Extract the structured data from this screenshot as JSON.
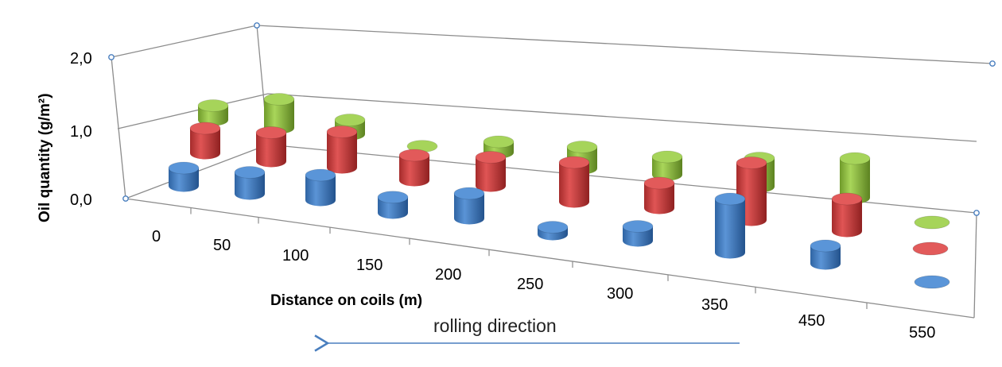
{
  "chart_data": {
    "type": "bar",
    "subtype": "3d-cylinder",
    "title": "",
    "xlabel": "Distance on coils (m)",
    "ylabel": "Oil quantity (g/m²)",
    "categories": [
      "0",
      "50",
      "100",
      "150",
      "200",
      "250",
      "300",
      "350",
      "450",
      "550"
    ],
    "y_ticks": [
      "0,0",
      "1,0",
      "2,0"
    ],
    "ylim": [
      0,
      2
    ],
    "grid": true,
    "legend": "right, unlabeled color keys",
    "series": [
      {
        "color": "#3f7fc6",
        "values": [
          0.25,
          0.3,
          0.35,
          0.22,
          0.35,
          0.1,
          0.2,
          0.75,
          0.25,
          null
        ]
      },
      {
        "color": "#c63b3b",
        "values": [
          0.35,
          0.4,
          0.5,
          0.35,
          0.4,
          0.55,
          0.35,
          0.8,
          0.45,
          null
        ]
      },
      {
        "color": "#8dbf3e",
        "values": [
          0.2,
          0.4,
          0.2,
          0.01,
          0.15,
          0.3,
          0.25,
          0.4,
          0.55,
          null
        ]
      }
    ],
    "annotation": "rolling direction"
  }
}
